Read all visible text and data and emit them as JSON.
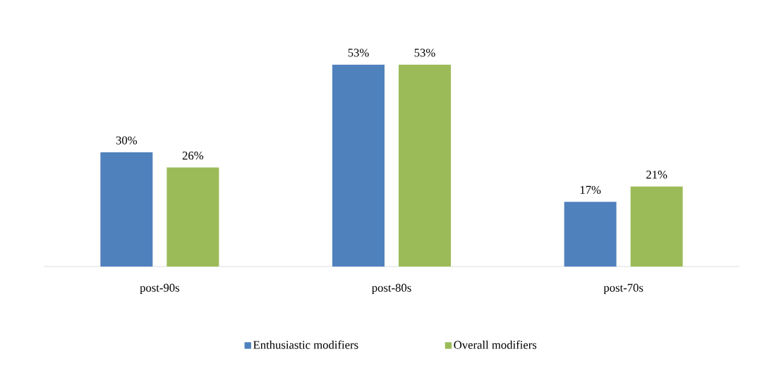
{
  "chart_data": {
    "type": "bar",
    "categories": [
      "post-90s",
      "post-80s",
      "post-70s"
    ],
    "series": [
      {
        "name": "Enthusiastic modifiers",
        "color": "#4f81bd",
        "values": [
          30,
          53,
          17
        ],
        "value_labels": [
          "30%",
          "53%",
          "17%"
        ]
      },
      {
        "name": "Overall modifiers",
        "color": "#9bbb59",
        "values": [
          26,
          53,
          21
        ],
        "value_labels": [
          "26%",
          "53%",
          "21%"
        ]
      }
    ],
    "legend": "bottom",
    "grid": false
  }
}
